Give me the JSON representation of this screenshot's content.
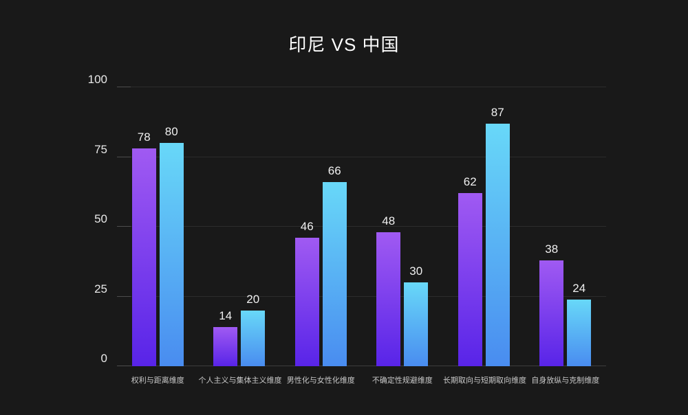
{
  "title": "印尼 VS 中国",
  "colors": {
    "background": "#191919",
    "title_text": "#fdfdfd",
    "gridline": "#2c2c2c",
    "axis_baseline": "#3d3d3d",
    "tick": "#4d4d4d",
    "y_axis_label": "#e9e9e9",
    "value_label": "#f0f0f0",
    "category_label": "#c9c9c9",
    "series_indonesia_top": "#a05af2",
    "series_indonesia_bottom": "#5824e8",
    "series_china_top": "#68d8f8",
    "series_china_bottom": "#498cf0"
  },
  "chart_data": {
    "type": "bar",
    "title": "印尼 VS 中国",
    "categories": [
      "权利与距离维度",
      "个人主义与集体主义维度",
      "男性化与女性化维度",
      "不确定性规避维度",
      "长期取向与短期取向维度",
      "自身放纵与克制维度"
    ],
    "series": [
      {
        "name": "印尼",
        "values": [
          78,
          14,
          46,
          48,
          62,
          38
        ],
        "color_top": "#a05af2",
        "color_bottom": "#5824e8"
      },
      {
        "name": "中国",
        "values": [
          80,
          20,
          66,
          30,
          87,
          24
        ],
        "color_top": "#68d8f8",
        "color_bottom": "#498cf0"
      }
    ],
    "xlabel": "",
    "ylabel": "",
    "ylim": [
      0,
      100
    ],
    "yticks": [
      0,
      25,
      50,
      75,
      100
    ],
    "grid": true,
    "legend_position": "none"
  }
}
